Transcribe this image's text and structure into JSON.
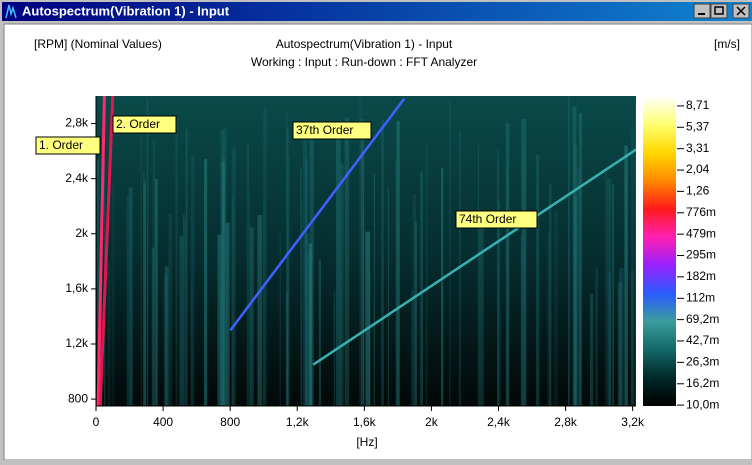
{
  "window": {
    "title": "Autospectrum(Vibration 1) - Input"
  },
  "chart_data": {
    "type": "colormap",
    "title": "Autospectrum(Vibration 1) - Input",
    "subtitle": "Working : Input : Run-down : FFT Analyzer",
    "y_label": "[RPM] (Nominal Values)",
    "x_label": "[Hz]",
    "z_label": "[m/s]",
    "xlim": [
      0,
      3220
    ],
    "xticks": [
      0,
      400,
      800,
      {
        "value": 1200,
        "label": "1,2k"
      },
      {
        "value": 1600,
        "label": "1,6k"
      },
      {
        "value": 2000,
        "label": "2k"
      },
      {
        "value": 2400,
        "label": "2,4k"
      },
      {
        "value": 2800,
        "label": "2,8k"
      },
      {
        "value": 3200,
        "label": "3,2k"
      }
    ],
    "ylim": [
      750,
      3000
    ],
    "yticks": [
      800,
      {
        "value": 1200,
        "label": "1,2k"
      },
      {
        "value": 1600,
        "label": "1,6k"
      },
      {
        "value": 2000,
        "label": "2k"
      },
      {
        "value": 2400,
        "label": "2,4k"
      },
      {
        "value": 2800,
        "label": "2,8k"
      }
    ],
    "zlim": [
      0.0098,
      10.9
    ],
    "zscale": "log",
    "zticks": [
      {
        "value": 8.71,
        "label": "8,71"
      },
      {
        "value": 5.37,
        "label": "5,37"
      },
      {
        "value": 3.31,
        "label": "3,31"
      },
      {
        "value": 2.04,
        "label": "2,04"
      },
      {
        "value": 1.26,
        "label": "1,26"
      },
      {
        "value": 0.776,
        "label": "776m"
      },
      {
        "value": 0.479,
        "label": "479m"
      },
      {
        "value": 0.295,
        "label": "295m"
      },
      {
        "value": 0.182,
        "label": "182m"
      },
      {
        "value": 0.112,
        "label": "112m"
      },
      {
        "value": 0.0692,
        "label": "69,2m"
      },
      {
        "value": 0.0427,
        "label": "42,7m"
      },
      {
        "value": 0.0263,
        "label": "26,3m"
      },
      {
        "value": 0.0162,
        "label": "16,2m"
      },
      {
        "value": 0.01,
        "label": "10,0m"
      }
    ],
    "colormap": [
      "#000000",
      "#002828",
      "#146868",
      "#3a9c9c",
      "#2a5cff",
      "#9a20ff",
      "#ff20b0",
      "#ff1a1a",
      "#ff8a00",
      "#ffd800",
      "#ffff70",
      "#ffffff"
    ],
    "orders": [
      {
        "label": "1. Order",
        "order": 1,
        "rpm": [
          750,
          3000
        ],
        "color": "#ff2a6a"
      },
      {
        "label": "2. Order",
        "order": 2,
        "rpm": [
          750,
          3000
        ],
        "color": "#e01850"
      },
      {
        "label": "37th Order",
        "order": 37,
        "rpm": [
          1300,
          2980
        ],
        "color": "#4060ff"
      },
      {
        "label": "74th Order",
        "order": 74,
        "rpm": [
          1050,
          2620
        ],
        "color": "#3ab0b0"
      }
    ]
  }
}
